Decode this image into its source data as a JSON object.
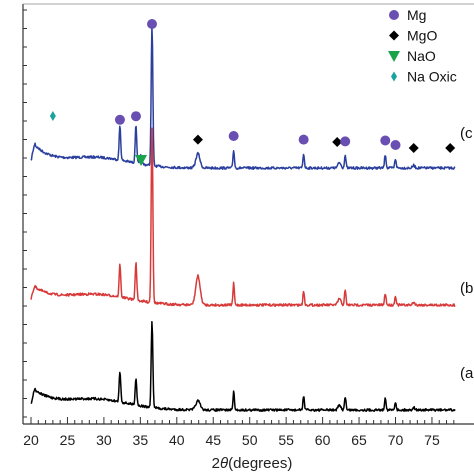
{
  "chart_data": {
    "type": "line",
    "xlabel_prefix": "2",
    "xlabel_symbol": "θ",
    "xlabel_suffix": "(degrees)",
    "xlim": [
      19.5,
      78
    ],
    "x_ticks": [
      20,
      25,
      30,
      35,
      40,
      45,
      50,
      55,
      60,
      65,
      70,
      75
    ],
    "grid": false,
    "legend_position": "top-right",
    "legend": [
      {
        "label": "Mg",
        "marker": "circle",
        "color": "#6a4fb3"
      },
      {
        "label": "MgO",
        "marker": "diamond",
        "color": "#000000"
      },
      {
        "label": "NaO",
        "marker": "triangle-down",
        "color": "#1aa34a"
      },
      {
        "label": "Na Oxic",
        "marker": "thin-diamond",
        "color": "#1aa39a"
      }
    ],
    "series": [
      {
        "label": "(c",
        "color": "#2a3f9e",
        "peaks": [
          {
            "x": 32.2,
            "h": 0.38,
            "w": 0.22
          },
          {
            "x": 34.4,
            "h": 0.42,
            "w": 0.22
          },
          {
            "x": 35.1,
            "h": 0.1,
            "w": 0.2
          },
          {
            "x": 36.6,
            "h": 1.55,
            "w": 0.22
          },
          {
            "x": 42.9,
            "h": 0.16,
            "w": 0.55
          },
          {
            "x": 47.8,
            "h": 0.2,
            "w": 0.2
          },
          {
            "x": 57.4,
            "h": 0.16,
            "w": 0.2
          },
          {
            "x": 62.3,
            "h": 0.06,
            "w": 0.4
          },
          {
            "x": 63.1,
            "h": 0.14,
            "w": 0.2
          },
          {
            "x": 68.6,
            "h": 0.15,
            "w": 0.2
          },
          {
            "x": 70.0,
            "h": 0.1,
            "w": 0.2
          },
          {
            "x": 72.5,
            "h": 0.03,
            "w": 0.3
          }
        ],
        "markers": [
          {
            "type": "Na Oxic",
            "x": 23.0
          },
          {
            "type": "Mg",
            "x": 32.2
          },
          {
            "type": "Mg",
            "x": 34.4
          },
          {
            "type": "NaO",
            "x": 35.1
          },
          {
            "type": "Mg",
            "x": 36.6
          },
          {
            "type": "MgO",
            "x": 42.9
          },
          {
            "type": "Mg",
            "x": 47.8
          },
          {
            "type": "Mg",
            "x": 57.4
          },
          {
            "type": "MgO",
            "x": 62.0
          },
          {
            "type": "Mg",
            "x": 63.1
          },
          {
            "type": "Mg",
            "x": 68.6
          },
          {
            "type": "Mg",
            "x": 70.0
          },
          {
            "type": "MgO",
            "x": 72.5
          },
          {
            "type": "MgO",
            "x": 77.5
          }
        ]
      },
      {
        "label": "(b",
        "color": "#d83a3a",
        "peaks": [
          {
            "x": 32.2,
            "h": 0.36,
            "w": 0.22
          },
          {
            "x": 34.4,
            "h": 0.42,
            "w": 0.22
          },
          {
            "x": 36.6,
            "h": 1.95,
            "w": 0.22
          },
          {
            "x": 42.9,
            "h": 0.32,
            "w": 0.6
          },
          {
            "x": 47.8,
            "h": 0.24,
            "w": 0.2
          },
          {
            "x": 57.4,
            "h": 0.16,
            "w": 0.2
          },
          {
            "x": 62.3,
            "h": 0.07,
            "w": 0.4
          },
          {
            "x": 63.1,
            "h": 0.16,
            "w": 0.2
          },
          {
            "x": 68.6,
            "h": 0.13,
            "w": 0.2
          },
          {
            "x": 70.0,
            "h": 0.1,
            "w": 0.2
          },
          {
            "x": 72.5,
            "h": 0.03,
            "w": 0.3
          }
        ]
      },
      {
        "label": "(a",
        "color": "#000000",
        "peaks": [
          {
            "x": 32.2,
            "h": 0.34,
            "w": 0.22
          },
          {
            "x": 34.4,
            "h": 0.3,
            "w": 0.22
          },
          {
            "x": 36.6,
            "h": 0.95,
            "w": 0.22
          },
          {
            "x": 42.9,
            "h": 0.1,
            "w": 0.6
          },
          {
            "x": 47.8,
            "h": 0.2,
            "w": 0.2
          },
          {
            "x": 57.4,
            "h": 0.16,
            "w": 0.2
          },
          {
            "x": 62.3,
            "h": 0.05,
            "w": 0.4
          },
          {
            "x": 63.1,
            "h": 0.15,
            "w": 0.2
          },
          {
            "x": 68.6,
            "h": 0.14,
            "w": 0.2
          },
          {
            "x": 70.0,
            "h": 0.09,
            "w": 0.2
          },
          {
            "x": 72.5,
            "h": 0.03,
            "w": 0.3
          }
        ]
      }
    ]
  }
}
